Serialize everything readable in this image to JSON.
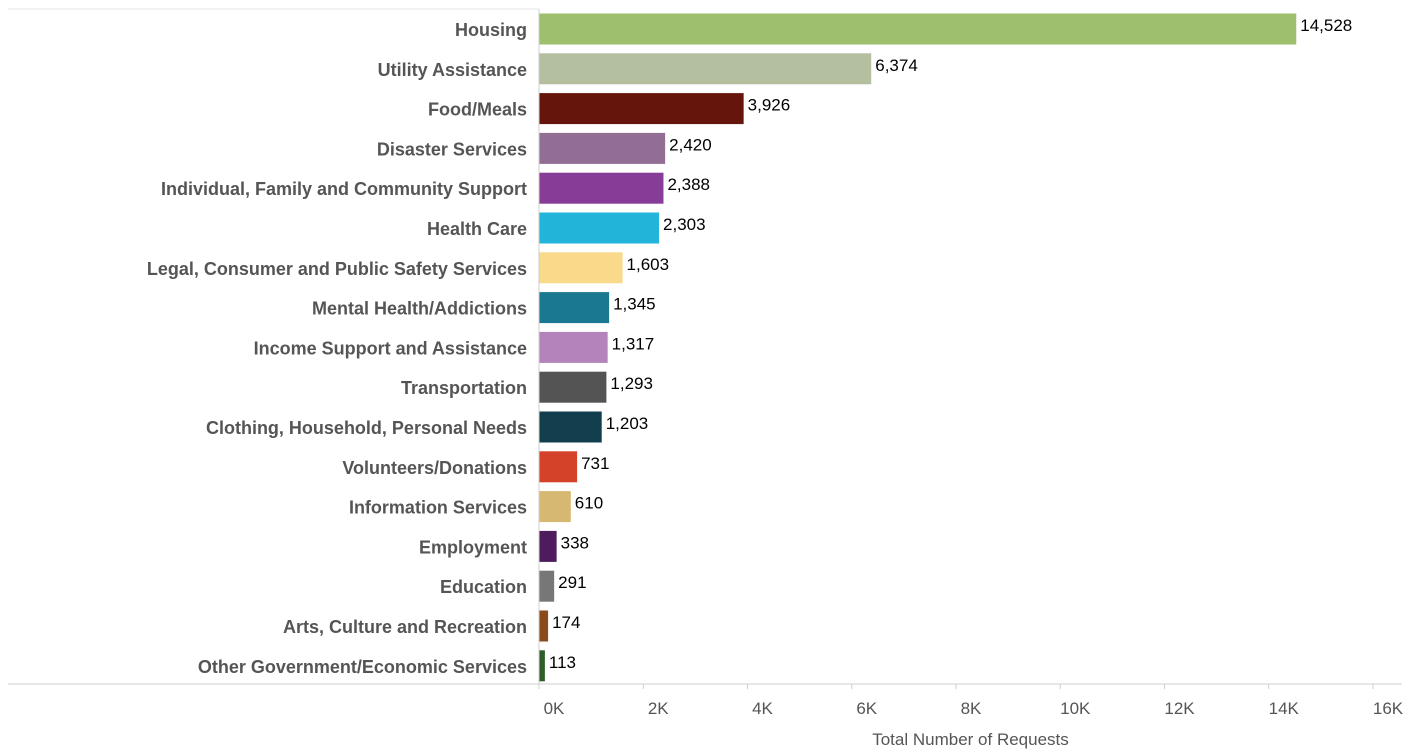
{
  "chart_data": {
    "type": "bar",
    "orientation": "horizontal",
    "categories": [
      "Housing",
      "Utility Assistance",
      "Food/Meals",
      "Disaster Services",
      "Individual, Family and Community Support",
      "Health Care",
      "Legal, Consumer and Public Safety Services",
      "Mental Health/Addictions",
      "Income Support and Assistance",
      "Transportation",
      "Clothing, Household, Personal Needs",
      "Volunteers/Donations",
      "Information Services",
      "Employment",
      "Education",
      "Arts, Culture and Recreation",
      "Other Government/Economic Services"
    ],
    "values": [
      14528,
      6374,
      3926,
      2420,
      2388,
      2303,
      1603,
      1345,
      1317,
      1293,
      1203,
      731,
      610,
      338,
      291,
      174,
      113
    ],
    "value_labels": [
      "14,528",
      "6,374",
      "3,926",
      "2,420",
      "2,388",
      "2,303",
      "1,603",
      "1,345",
      "1,317",
      "1,293",
      "1,203",
      "731",
      "610",
      "338",
      "291",
      "174",
      "113"
    ],
    "colors": [
      "#9dbf6e",
      "#b3bf9f",
      "#66150d",
      "#926e95",
      "#873c98",
      "#23b4d9",
      "#f9da8b",
      "#1a7891",
      "#b583bc",
      "#545454",
      "#123e4d",
      "#d4422a",
      "#d6b871",
      "#4e1c5c",
      "#777777",
      "#8b4a1b",
      "#2f5c2b"
    ],
    "xlim": [
      0,
      16000
    ],
    "xticks": [
      0,
      2000,
      4000,
      6000,
      8000,
      10000,
      12000,
      14000,
      16000
    ],
    "xtick_labels": [
      "0K",
      "2K",
      "4K",
      "6K",
      "8K",
      "10K",
      "12K",
      "14K",
      "16K"
    ],
    "xlabel": "Total Number of Requests",
    "ylabel": "",
    "title": "",
    "grid": false,
    "legend": "none"
  }
}
